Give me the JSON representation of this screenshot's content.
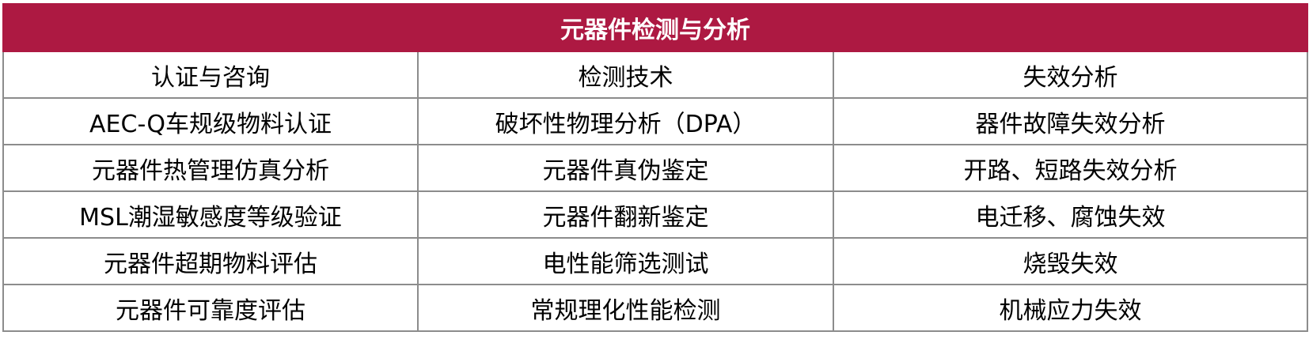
{
  "title": "元器件检测与分析",
  "accent_color": "#ad1942",
  "columns": [
    "认证与咨询",
    "检测技术",
    "失效分析"
  ],
  "rows": [
    [
      "AEC-Q车规级物料认证",
      "破坏性物理分析（DPA）",
      "器件故障失效分析"
    ],
    [
      "元器件热管理仿真分析",
      "元器件真伪鉴定",
      "开路、短路失效分析"
    ],
    [
      "MSL潮湿敏感度等级验证",
      "元器件翻新鉴定",
      "电迁移、腐蚀失效"
    ],
    [
      "元器件超期物料评估",
      "电性能筛选测试",
      "烧毁失效"
    ],
    [
      "元器件可靠度评估",
      "常规理化性能检测",
      "机械应力失效"
    ]
  ]
}
